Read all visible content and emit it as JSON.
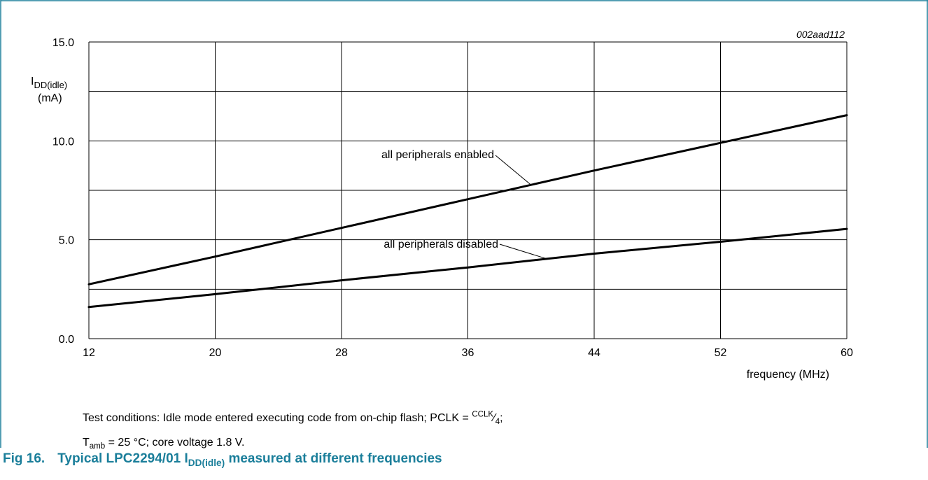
{
  "chart_data": {
    "type": "line",
    "figure_code": "002aad112",
    "ylabel_main": "I",
    "ylabel_sub": "DD(idle)",
    "ylabel_unit": "(mA)",
    "xlabel": "frequency (MHz)",
    "xlim": [
      12,
      60
    ],
    "ylim": [
      0,
      15
    ],
    "x_ticks": [
      12,
      20,
      28,
      36,
      44,
      52,
      60
    ],
    "x_tick_labels": [
      "12",
      "20",
      "28",
      "36",
      "44",
      "52",
      "60"
    ],
    "y_ticks": [
      0,
      5,
      10,
      15
    ],
    "y_tick_labels": [
      "0.0",
      "5.0",
      "10.0",
      "15.0"
    ],
    "y_grid": [
      0,
      2.5,
      5,
      7.5,
      10,
      12.5,
      15
    ],
    "grid": true,
    "series": [
      {
        "name": "all peripherals enabled",
        "x": [
          12,
          20,
          28,
          36,
          44,
          52,
          60
        ],
        "y": [
          2.75,
          4.15,
          5.6,
          7.05,
          8.5,
          9.9,
          11.3
        ]
      },
      {
        "name": "all peripherals disabled",
        "x": [
          12,
          20,
          28,
          36,
          44,
          52,
          60
        ],
        "y": [
          1.6,
          2.25,
          2.95,
          3.6,
          4.3,
          4.9,
          5.55
        ]
      }
    ]
  },
  "notes": {
    "line1_prefix": "Test conditions: Idle mode entered executing code from on-chip flash; PCLK = ",
    "line1_sup": "CCLK",
    "line1_frac": "⁄",
    "line1_sub": "4",
    "line1_suffix": ";",
    "line2_main": "T",
    "line2_sub": "amb",
    "line2_suffix": " = 25 °C; core voltage 1.8 V."
  },
  "caption": {
    "fig_number": "Fig 16.",
    "text_prefix": "Typical LPC2294/01 I",
    "text_sub": "DD(idle)",
    "text_suffix": " measured at different frequencies"
  },
  "colors": {
    "caption": "#1a7e9a",
    "frame": "#1a7e9a",
    "lines": "#000000",
    "grid": "#000000"
  }
}
